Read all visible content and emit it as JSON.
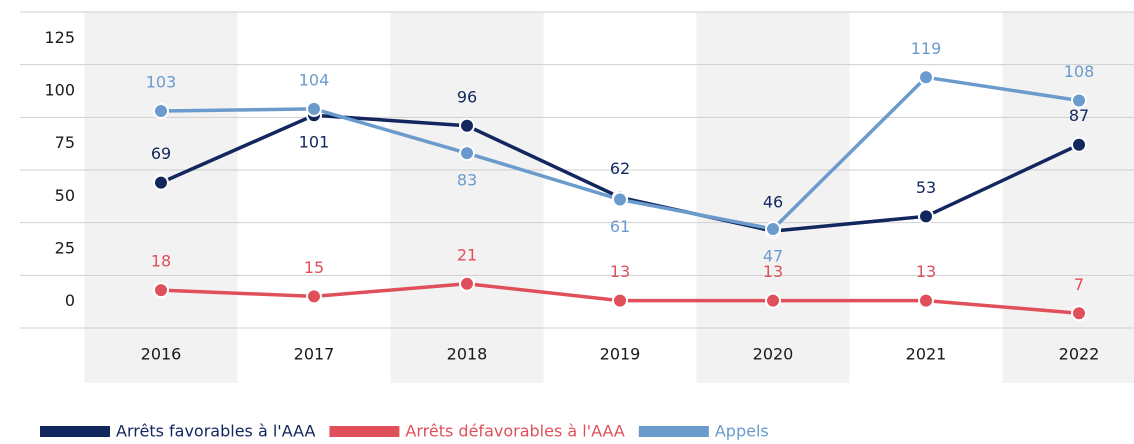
{
  "chart_data": {
    "type": "line",
    "categories": [
      "2016",
      "2017",
      "2018",
      "2019",
      "2020",
      "2021",
      "2022"
    ],
    "series": [
      {
        "name": "Arrêts favorables à l'AAA",
        "color": "#13275f",
        "values": [
          69,
          101,
          96,
          62,
          46,
          53,
          87
        ]
      },
      {
        "name": "Arrêts défavorables à l'AAA",
        "color": "#e0505a",
        "values": [
          18,
          15,
          21,
          13,
          13,
          13,
          7
        ]
      },
      {
        "name": "Appels",
        "color": "#6b9bcd",
        "values": [
          103,
          104,
          83,
          61,
          47,
          119,
          108
        ]
      }
    ],
    "ylim": [
      0,
      150
    ],
    "yticks": [
      0,
      25,
      50,
      75,
      100,
      125
    ],
    "grid": true,
    "legend": "bottom"
  }
}
